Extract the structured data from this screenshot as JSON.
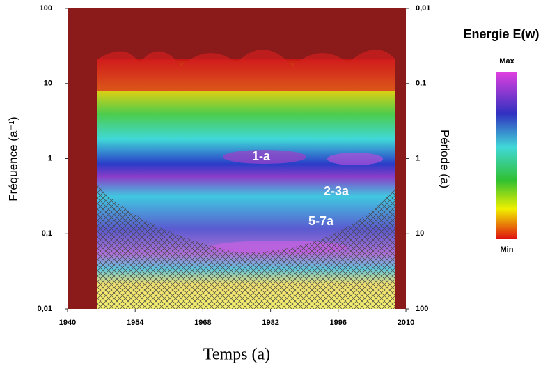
{
  "chart_data": {
    "type": "heatmap",
    "xlabel": "Temps (a)",
    "ylabel": "Fréquence (a⁻¹)",
    "y2label": "Période (a)",
    "xlim": [
      1940,
      2010
    ],
    "xticks": [
      1940,
      1954,
      1968,
      1982,
      1996,
      2010
    ],
    "ylim": [
      0.01,
      100
    ],
    "yscale": "log",
    "yticks": [
      {
        "value": 0.01,
        "label": "0,01"
      },
      {
        "value": 0.1,
        "label": "0,1"
      },
      1,
      10,
      100
    ],
    "y2lim": [
      100,
      0.01
    ],
    "y2scale": "log",
    "y2ticks": [
      100,
      10,
      1,
      {
        "value": 0.1,
        "label": "0,1"
      },
      {
        "value": 0.01,
        "label": "0,01"
      }
    ],
    "annotations": [
      "1-a",
      "2-3a",
      "5-7a"
    ],
    "colorbar": {
      "title": "Energie E(w)",
      "max_label": "Max",
      "min_label": "Min"
    },
    "grid": false
  }
}
